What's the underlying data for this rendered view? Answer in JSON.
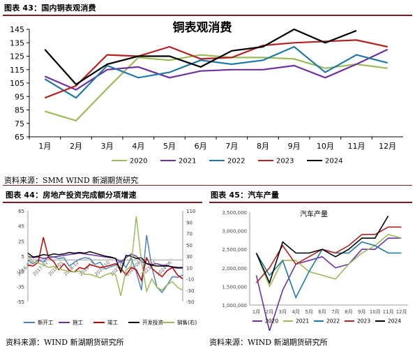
{
  "fig43": {
    "header": "图表 43：国内铜表观消费",
    "source": "资料来源：SMM WIND 新湖期货研究",
    "chart_data": {
      "type": "line",
      "title": "铜表观消费",
      "categories": [
        "1月",
        "2月",
        "3月",
        "4月",
        "5月",
        "6月",
        "7月",
        "8月",
        "9月",
        "10月",
        "11月",
        "12月"
      ],
      "ylim": [
        65,
        145
      ],
      "yticks": [
        65,
        75,
        85,
        95,
        105,
        115,
        125,
        135,
        145
      ],
      "legend_position": "bottom",
      "grid": false,
      "series": [
        {
          "name": "2020",
          "color": "#9bbb59",
          "values": [
            84,
            77,
            101,
            124,
            122,
            126,
            124,
            124,
            123,
            116,
            119,
            116
          ]
        },
        {
          "name": "2021",
          "color": "#7030a0",
          "values": [
            110,
            100,
            115,
            117,
            109,
            114,
            115,
            115,
            118,
            109,
            119,
            130
          ]
        },
        {
          "name": "2022",
          "color": "#1f78a6",
          "values": [
            108,
            94,
            118,
            109,
            113,
            122,
            119,
            122,
            132,
            113,
            126,
            120
          ]
        },
        {
          "name": "2023",
          "color": "#b22222",
          "values": [
            94,
            103,
            126,
            125,
            132,
            123,
            124,
            133,
            135,
            136,
            137,
            132
          ]
        },
        {
          "name": "2024",
          "color": "#000000",
          "values": [
            130,
            104,
            119,
            125,
            125,
            117,
            129,
            132,
            145,
            135,
            144,
            null
          ]
        }
      ]
    }
  },
  "fig44": {
    "header": "图表 44：房地产投资完成额分项增速",
    "source": "资料来源：WIND 新湖期货研究所",
    "chart_data": {
      "type": "line",
      "ylim_left": [
        -55,
        65
      ],
      "yticks_left": [
        -55,
        -35,
        -15,
        5,
        25,
        45,
        65
      ],
      "ylim_right": [
        -50,
        110
      ],
      "yticks_right": [
        -50,
        -30,
        -10,
        10,
        30,
        50,
        70,
        90,
        110
      ],
      "xticks": [
        "2016-03",
        "2017-02",
        "2018-01",
        "2018-12",
        "2019-11",
        "2020-10",
        "2021-09",
        "2022-08",
        "2023-07",
        "2024-06"
      ],
      "legend_position": "bottom",
      "series": [
        {
          "name": "新开工",
          "color": "#4f81bd",
          "axis": "left",
          "values": [
            0,
            -5,
            0,
            -3,
            5,
            4,
            2,
            3,
            -8,
            -3,
            1,
            3,
            2,
            -6,
            -3,
            -12,
            -9,
            -7,
            -1,
            -10,
            3,
            -16,
            -40,
            33,
            -9,
            -36,
            -43,
            -33,
            -22,
            -23,
            -20
          ]
        },
        {
          "name": "施工",
          "color": "#7030a0",
          "axis": "left",
          "values": [
            5,
            3,
            4,
            2,
            3,
            4,
            5,
            6,
            7,
            8,
            9,
            8,
            7,
            6,
            5,
            4,
            3,
            2,
            -3,
            3,
            8,
            5,
            -2,
            -5,
            -6,
            -5,
            -7,
            -7,
            -10,
            -11,
            -11
          ]
        },
        {
          "name": "竣工",
          "color": "#c00000",
          "axis": "left",
          "values": [
            -7,
            -8,
            -3,
            30,
            3,
            -2,
            -13,
            -5,
            -14,
            -16,
            -10,
            -12,
            -6,
            -8,
            -10,
            -9,
            -7,
            -5,
            -11,
            -20,
            -10,
            -13,
            -27,
            3,
            -11,
            -17,
            -22,
            -14,
            -10,
            -20,
            -25
          ]
        },
        {
          "name": "开发投资",
          "color": "#000000",
          "axis": "left",
          "values": [
            9,
            4,
            5,
            7,
            6,
            8,
            7,
            8,
            10,
            9,
            10,
            9,
            11,
            9,
            7,
            5,
            4,
            2,
            -16,
            6,
            5,
            2,
            3,
            -5,
            -7,
            -8,
            -8,
            -8,
            -9,
            -10,
            -10
          ]
        },
        {
          "name": "销售(右)",
          "color": "#9bbb59",
          "axis": "right",
          "values": [
            30,
            20,
            18,
            15,
            10,
            12,
            8,
            5,
            3,
            2,
            4,
            -2,
            -2,
            -5,
            -8,
            -3,
            0,
            -3,
            -40,
            5,
            13,
            100,
            20,
            -32,
            -10,
            -25,
            -30,
            -20,
            -15,
            -25,
            -30
          ]
        }
      ]
    }
  },
  "fig45": {
    "header": "图表 45：汽车产量",
    "source": "资料来源：WIND 新湖期货研究所",
    "chart_data": {
      "type": "line",
      "title": "汽车产量",
      "categories": [
        "1月",
        "2月",
        "3月",
        "4月",
        "5月",
        "6月",
        "7月",
        "8月",
        "9月",
        "10月",
        "11月",
        "12月"
      ],
      "ylim": [
        1000000,
        3500000
      ],
      "yticks": [
        1000000,
        1500000,
        2000000,
        2500000,
        3000000,
        3500000
      ],
      "ytick_labels": [
        "1,000,000",
        "1,500,000",
        "2,000,000",
        "2,500,000",
        "3,000,000",
        "3,500,000"
      ],
      "legend_position": "bottom",
      "series": [
        {
          "name": "2020",
          "color": "#7030a0",
          "values": [
            1800,
            300,
            1400,
            2100,
            2200,
            2300,
            2000,
            2100,
            2500,
            2500,
            2800,
            2800
          ]
        },
        {
          "name": "2021",
          "color": "#9bbb59",
          "values": [
            2400,
            1500,
            2200,
            2200,
            1900,
            1800,
            1700,
            2100,
            2400,
            2600,
            2900,
            2800
          ]
        },
        {
          "name": "2022",
          "color": "#1f78a6",
          "values": [
            2400,
            1800,
            2200,
            1200,
            1900,
            2500,
            2400,
            2400,
            2700,
            2600,
            2400,
            2400
          ]
        },
        {
          "name": "2023",
          "color": "#b22222",
          "values": [
            1600,
            2000,
            2600,
            2100,
            2300,
            2500,
            2400,
            2600,
            2900,
            2900,
            3100,
            3100
          ]
        },
        {
          "name": "2024",
          "color": "#000000",
          "values": [
            2400,
            1600,
            2700,
            2400,
            2400,
            2500,
            2300,
            2500,
            2800,
            2800,
            3400,
            null
          ]
        }
      ]
    }
  }
}
